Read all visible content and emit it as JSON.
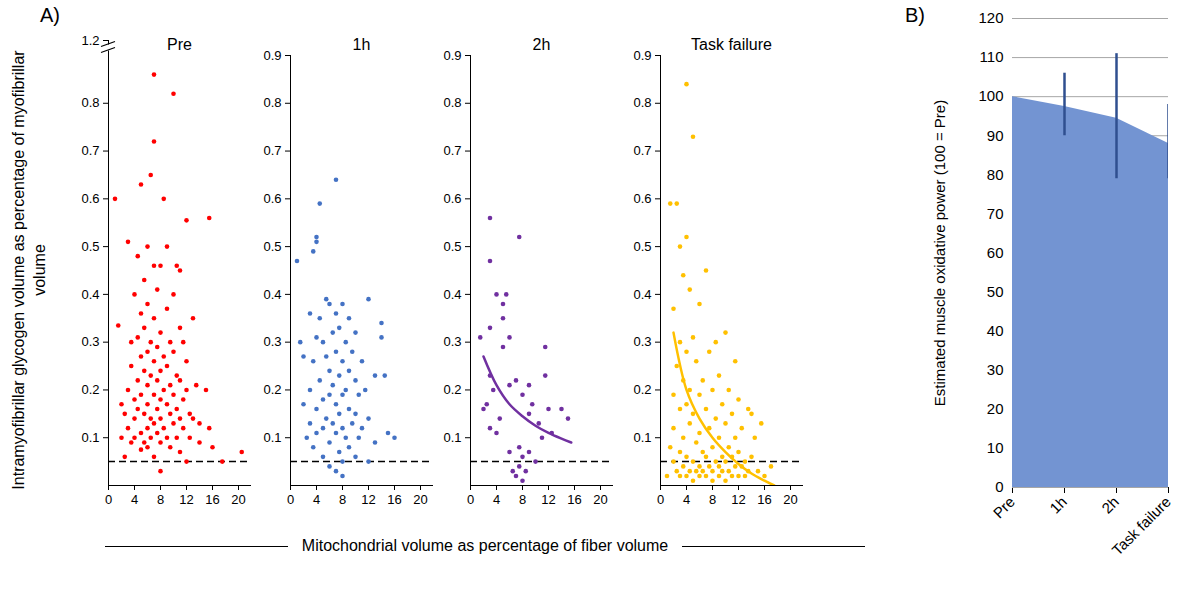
{
  "shared_xlabel": "Mitochondrial volume as percentage of fiber volume",
  "shared_ylabel": "Intramyofibrillar glycogen volume as percentage of myofibrillar volume",
  "chart_data": [
    {
      "type": "scatter",
      "panel": "A)",
      "title": "Pre",
      "xlim": [
        0,
        22
      ],
      "xticks": [
        0,
        4,
        8,
        12,
        16,
        20
      ],
      "ylim": [
        0,
        1.2
      ],
      "yticks": [
        0.1,
        0.2,
        0.3,
        0.4,
        0.5,
        0.6,
        0.7,
        0.8,
        1.2
      ],
      "axis_break": [
        0.9,
        1.2
      ],
      "grid": false,
      "reference_lines": [
        {
          "y": 0.05,
          "line_style": "dashed",
          "color": "#000000"
        }
      ],
      "series": [
        {
          "type": "scatter",
          "color": "#ff0000",
          "marker": "circle",
          "x": [
            1,
            1.5,
            2,
            2,
            2.5,
            2.5,
            3,
            3,
            3,
            3.5,
            3.5,
            3.5,
            4,
            4,
            4,
            4,
            4.5,
            4.5,
            4.5,
            4.5,
            5,
            5,
            5,
            5,
            5,
            5,
            5.5,
            5.5,
            5.5,
            5.5,
            5.5,
            6,
            6,
            6,
            6,
            6,
            6,
            6,
            6.5,
            6.5,
            6.5,
            6.5,
            6.5,
            7,
            7,
            7,
            7,
            7,
            7,
            7,
            7,
            7.5,
            7.5,
            7.5,
            7.5,
            7.5,
            8,
            8,
            8,
            8,
            8,
            8,
            8,
            8.5,
            8.5,
            8.5,
            8.5,
            9,
            9,
            9,
            9,
            9,
            9.5,
            9.5,
            9.5,
            9.5,
            10,
            10,
            10,
            10,
            10,
            10.5,
            10.5,
            10.5,
            10.5,
            11,
            11,
            11,
            11,
            11,
            11.5,
            11.5,
            11.5,
            12,
            12,
            12,
            12,
            12.5,
            12.5,
            13,
            13,
            13.5,
            14,
            14,
            15,
            15.5,
            15.5,
            16,
            17.5,
            20.5
          ],
          "values": [
            0.6,
            0.335,
            0.17,
            0.1,
            0.15,
            0.06,
            0.51,
            0.2,
            0.12,
            0.25,
            0.09,
            0.3,
            0.18,
            0.14,
            0.4,
            0.1,
            0.48,
            0.22,
            0.16,
            0.31,
            0.63,
            0.36,
            0.27,
            0.19,
            0.11,
            0.075,
            0.43,
            0.24,
            0.15,
            0.33,
            0.09,
            0.5,
            0.38,
            0.28,
            0.21,
            0.17,
            0.12,
            0.08,
            0.65,
            0.3,
            0.23,
            0.14,
            0.1,
            0.86,
            0.72,
            0.46,
            0.35,
            0.26,
            0.19,
            0.13,
            0.06,
            0.41,
            0.29,
            0.22,
            0.16,
            0.11,
            0.46,
            0.32,
            0.24,
            0.18,
            0.14,
            0.09,
            0.03,
            0.6,
            0.27,
            0.2,
            0.12,
            0.5,
            0.37,
            0.25,
            0.17,
            0.1,
            0.3,
            0.21,
            0.15,
            0.08,
            0.82,
            0.4,
            0.28,
            0.19,
            0.13,
            0.46,
            0.23,
            0.16,
            0.1,
            0.45,
            0.33,
            0.22,
            0.14,
            0.07,
            0.3,
            0.18,
            0.12,
            0.555,
            0.26,
            0.2,
            0.05,
            0.15,
            0.1,
            0.35,
            0.14,
            0.21,
            0.13,
            0.09,
            0.2,
            0.56,
            0.12,
            0.08,
            0.05,
            0.07
          ]
        }
      ]
    },
    {
      "type": "scatter",
      "title": "1h",
      "xlim": [
        0,
        22
      ],
      "xticks": [
        0,
        4,
        8,
        12,
        16,
        20
      ],
      "ylim": [
        0,
        0.9
      ],
      "yticks": [
        0.1,
        0.2,
        0.3,
        0.4,
        0.5,
        0.6,
        0.7,
        0.8,
        0.9
      ],
      "grid": false,
      "reference_lines": [
        {
          "y": 0.05,
          "line_style": "dashed",
          "color": "#000000"
        }
      ],
      "series": [
        {
          "type": "scatter",
          "color": "#4472c4",
          "marker": "circle",
          "x": [
            1,
            1.5,
            2,
            2,
            2.5,
            3,
            3,
            3,
            3.5,
            3.5,
            3.5,
            4,
            4,
            4,
            4,
            4,
            4.5,
            4.5,
            4.5,
            5,
            5,
            5,
            5,
            5.5,
            5.5,
            5.5,
            6,
            6,
            6,
            6,
            6,
            6.5,
            6.5,
            6.5,
            7,
            7,
            7,
            7,
            7,
            7,
            7.5,
            7.5,
            7.5,
            7.5,
            8,
            8,
            8,
            8,
            8,
            8,
            8.5,
            8.5,
            8.5,
            9,
            9,
            9,
            9,
            9.5,
            9.5,
            10,
            10,
            10,
            10,
            10.5,
            10.5,
            11,
            11,
            11.5,
            12,
            12,
            12,
            13,
            13,
            14,
            14,
            14.5,
            15,
            16
          ],
          "values": [
            0.47,
            0.3,
            0.27,
            0.17,
            0.1,
            0.36,
            0.2,
            0.13,
            0.49,
            0.26,
            0.08,
            0.51,
            0.52,
            0.31,
            0.16,
            0.11,
            0.59,
            0.35,
            0.22,
            0.3,
            0.18,
            0.12,
            0.06,
            0.39,
            0.27,
            0.14,
            0.38,
            0.24,
            0.19,
            0.09,
            0.04,
            0.32,
            0.21,
            0.13,
            0.64,
            0.36,
            0.28,
            0.17,
            0.11,
            0.03,
            0.33,
            0.23,
            0.15,
            0.07,
            0.38,
            0.26,
            0.19,
            0.12,
            0.05,
            0.02,
            0.3,
            0.2,
            0.1,
            0.35,
            0.24,
            0.16,
            0.08,
            0.28,
            0.13,
            0.32,
            0.22,
            0.15,
            0.06,
            0.19,
            0.1,
            0.26,
            0.12,
            0.2,
            0.39,
            0.14,
            0.05,
            0.23,
            0.09,
            0.34,
            0.31,
            0.23,
            0.11,
            0.1
          ]
        }
      ]
    },
    {
      "type": "scatter",
      "title": "2h",
      "xlim": [
        0,
        22
      ],
      "xticks": [
        0,
        4,
        8,
        12,
        16,
        20
      ],
      "ylim": [
        0,
        0.9
      ],
      "yticks": [
        0.1,
        0.2,
        0.3,
        0.4,
        0.5,
        0.6,
        0.7,
        0.8,
        0.9
      ],
      "grid": false,
      "reference_lines": [
        {
          "y": 0.05,
          "line_style": "dashed",
          "color": "#000000"
        }
      ],
      "series": [
        {
          "type": "scatter",
          "color": "#7030a0",
          "marker": "circle",
          "x": [
            1.5,
            2,
            2.5,
            3,
            3,
            3,
            3,
            3,
            3.5,
            4,
            4,
            4.5,
            5,
            5,
            5,
            5.5,
            6,
            6,
            6,
            6.5,
            7,
            7,
            7.5,
            7.5,
            7.5,
            8,
            8,
            8,
            8.5,
            9,
            9,
            9,
            9.5,
            10,
            10.5,
            11,
            11.5,
            11.5,
            12,
            12.5,
            14,
            15
          ],
          "values": [
            0.31,
            0.16,
            0.17,
            0.56,
            0.47,
            0.33,
            0.23,
            0.12,
            0.2,
            0.4,
            0.11,
            0.14,
            0.35,
            0.29,
            0.38,
            0.4,
            0.31,
            0.21,
            0.07,
            0.03,
            0.22,
            0.02,
            0.52,
            0.08,
            0.04,
            0.19,
            0.06,
            0.01,
            0.03,
            0.21,
            0.15,
            0.07,
            0.17,
            0.05,
            0.13,
            0.1,
            0.29,
            0.23,
            0.16,
            0.11,
            0.16,
            0.14
          ]
        },
        {
          "type": "line",
          "color": "#7030a0",
          "line_style": "solid",
          "x": [
            2,
            4,
            6,
            8,
            10,
            12,
            14,
            15.5
          ],
          "values": [
            0.27,
            0.21,
            0.17,
            0.145,
            0.125,
            0.11,
            0.098,
            0.09
          ]
        }
      ]
    },
    {
      "type": "scatter",
      "title": "Task failure",
      "xlim": [
        0,
        22
      ],
      "xticks": [
        0,
        4,
        8,
        12,
        16,
        20
      ],
      "ylim": [
        0,
        0.9
      ],
      "yticks": [
        0.1,
        0.2,
        0.3,
        0.4,
        0.5,
        0.6,
        0.7,
        0.8,
        0.9
      ],
      "grid": false,
      "reference_lines": [
        {
          "y": 0.05,
          "line_style": "dashed",
          "color": "#000000"
        }
      ],
      "series": [
        {
          "type": "scatter",
          "color": "#ffc000",
          "marker": "circle",
          "x": [
            1,
            1.5,
            1.5,
            2,
            2,
            2,
            2,
            2.5,
            2.5,
            2.5,
            3,
            3,
            3,
            3,
            3,
            3.5,
            3.5,
            3.5,
            3.5,
            4,
            4,
            4,
            4,
            4,
            4,
            4.5,
            4.5,
            4.5,
            4.5,
            5,
            5,
            5,
            5,
            5,
            5.5,
            5.5,
            5.5,
            6,
            6,
            6,
            6,
            6,
            6.5,
            6.5,
            6.5,
            7,
            7,
            7,
            7,
            7.5,
            7.5,
            7.5,
            8,
            8,
            8,
            8,
            8.5,
            8.5,
            8.5,
            9,
            9,
            9,
            9,
            9.5,
            9.5,
            9.5,
            10,
            10,
            10,
            10,
            10.5,
            10.5,
            10.5,
            11,
            11,
            11,
            11.5,
            11.5,
            11.5,
            12,
            12,
            12,
            12.5,
            12.5,
            13,
            13,
            13.5,
            13.5,
            14,
            14,
            14.5,
            15,
            15.5,
            16,
            17
          ],
          "values": [
            0.02,
            0.59,
            0.08,
            0.37,
            0.19,
            0.05,
            0.12,
            0.59,
            0.25,
            0.03,
            0.5,
            0.3,
            0.16,
            0.07,
            0.02,
            0.44,
            0.22,
            0.04,
            0.1,
            0.84,
            0.52,
            0.28,
            0.17,
            0.06,
            0.02,
            0.41,
            0.2,
            0.13,
            0.03,
            0.73,
            0.31,
            0.15,
            0.05,
            0.01,
            0.26,
            0.09,
            0.03,
            0.38,
            0.19,
            0.11,
            0.04,
            0.02,
            0.22,
            0.07,
            0.03,
            0.45,
            0.16,
            0.06,
            0.02,
            0.28,
            0.12,
            0.04,
            0.2,
            0.08,
            0.03,
            0.01,
            0.3,
            0.14,
            0.05,
            0.23,
            0.1,
            0.04,
            0.02,
            0.17,
            0.06,
            0.03,
            0.32,
            0.13,
            0.05,
            0.01,
            0.2,
            0.08,
            0.03,
            0.15,
            0.06,
            0.02,
            0.26,
            0.1,
            0.04,
            0.18,
            0.07,
            0.02,
            0.12,
            0.04,
            0.05,
            0.02,
            0.16,
            0.03,
            0.15,
            0.06,
            0.1,
            0.03,
            0.13,
            0.02,
            0.04
          ]
        },
        {
          "type": "line",
          "color": "#ffc000",
          "line_style": "solid",
          "x": [
            2,
            4,
            6,
            8,
            10,
            12,
            14,
            16,
            17.5
          ],
          "values": [
            0.32,
            0.2,
            0.14,
            0.1,
            0.07,
            0.045,
            0.025,
            0.01,
            0
          ]
        }
      ]
    },
    {
      "type": "area",
      "panel": "B)",
      "ylabel": "Estimated muscle oxidative power (100 = Pre)",
      "categories": [
        "Pre",
        "1h",
        "2h",
        "Task failure"
      ],
      "ylim": [
        0,
        120
      ],
      "yticks": [
        0,
        10,
        20,
        30,
        40,
        50,
        60,
        70,
        80,
        90,
        100,
        110,
        120
      ],
      "grid": true,
      "series": [
        {
          "type": "area",
          "color": "#7394d2",
          "values": [
            100,
            97.5,
            94.5,
            88
          ]
        },
        {
          "type": "errorbar",
          "color": "#2f4f8f",
          "low": [
            null,
            90,
            79,
            79
          ],
          "high": [
            null,
            106,
            111,
            98
          ]
        }
      ]
    }
  ]
}
